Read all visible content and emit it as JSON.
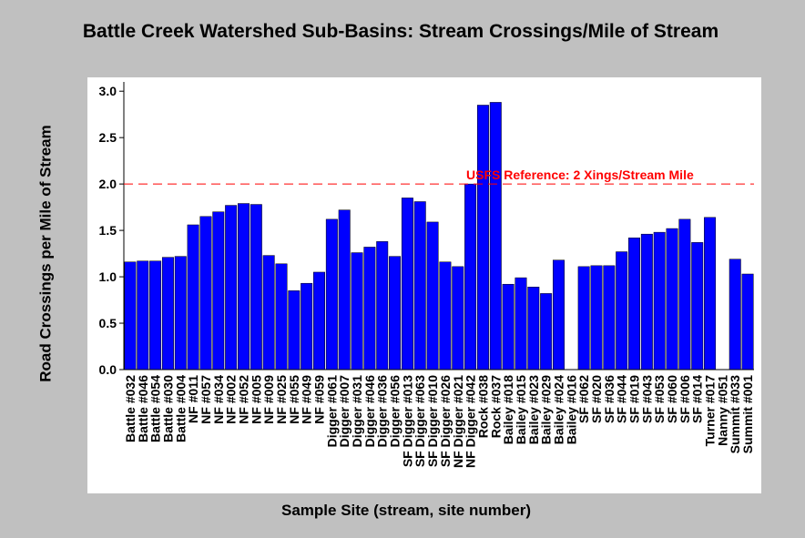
{
  "chart_data": {
    "type": "bar",
    "title": "Battle Creek Watershed Sub-Basins: Stream Crossings/Mile of Stream",
    "y_label": "Road Crossings per Mile of Stream",
    "x_label": "Sample Site (stream, site number)",
    "categories": [
      "Battle #032",
      "Battle #046",
      "Battle #054",
      "Battle #030",
      "Battle #004",
      "NF #011",
      "NF #057",
      "NF #034",
      "NF #002",
      "NF #052",
      "NF #005",
      "NF #009",
      "NF #025",
      "NF #055",
      "NF #049",
      "NF #059",
      "Digger #061",
      "Digger #007",
      "Digger #031",
      "Digger #046",
      "Digger #036",
      "Digger #056",
      "SF Digger #013",
      "SF Digger #063",
      "SF Digger #010",
      "SF Digger #026",
      "NF Digger #021",
      "NF Digger #042",
      "Rock #038",
      "Rock #037",
      "Bailey #018",
      "Bailey #015",
      "Bailey #023",
      "Bailey #029",
      "Bailey #024",
      "Bailey #016",
      "SF #062",
      "SF #020",
      "SF #036",
      "SF #044",
      "SF #019",
      "SF #043",
      "SF #053",
      "SF #060",
      "SF #006",
      "SF #014",
      "Turner #017",
      "Nanny #051",
      "Summit #033",
      "Summit #001"
    ],
    "values": [
      1.16,
      1.17,
      1.17,
      1.21,
      1.22,
      1.56,
      1.65,
      1.7,
      1.77,
      1.79,
      1.78,
      1.23,
      1.14,
      0.85,
      0.93,
      1.05,
      1.62,
      1.72,
      1.26,
      1.32,
      1.38,
      1.22,
      1.85,
      1.81,
      1.59,
      1.16,
      1.11,
      2.0,
      2.85,
      2.88,
      0.92,
      0.99,
      0.89,
      0.82,
      1.18,
      null,
      1.11,
      1.12,
      1.12,
      1.27,
      1.42,
      1.46,
      1.48,
      1.52,
      1.62,
      1.37,
      1.64,
      null,
      1.19,
      1.03
    ],
    "color": "#0000ff",
    "ylim": [
      0,
      3.1
    ],
    "yticks": [
      {
        "value": 0,
        "label": "0.0"
      },
      {
        "value": 0.5,
        "label": "0.5"
      },
      {
        "value": 1,
        "label": "1.0"
      },
      {
        "value": 1.5,
        "label": "1.5"
      },
      {
        "value": 2,
        "label": "2.0"
      },
      {
        "value": 2.5,
        "label": "2.5"
      },
      {
        "value": 3,
        "label": "3.0"
      }
    ],
    "reference_line": {
      "value": 2,
      "label": "USFS Reference: 2 Xings/Stream Mile",
      "color": "#ff0000"
    }
  }
}
